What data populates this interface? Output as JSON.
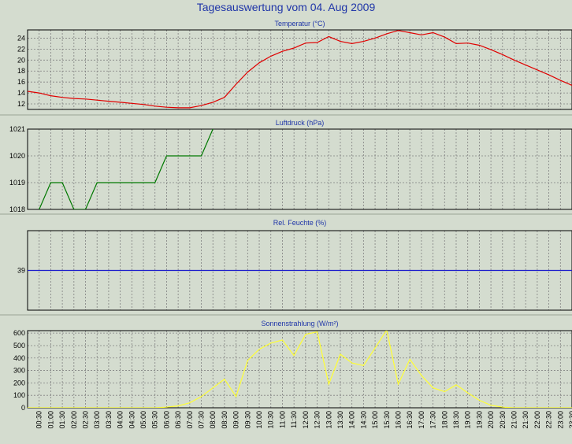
{
  "page": {
    "title": "Tagesauswertung vom 04. Aug 2009",
    "bg_color": "#d4dccf",
    "plot_bg": "#d4dccf",
    "grid_color": "#808080",
    "title_color": "#1f35a8"
  },
  "x_ticks": [
    "00:30",
    "01:00",
    "01:30",
    "02:00",
    "02:30",
    "03:00",
    "03:30",
    "04:00",
    "04:30",
    "05:00",
    "05:30",
    "06:00",
    "06:30",
    "07:00",
    "07:30",
    "08:00",
    "08:30",
    "09:00",
    "09:30",
    "10:00",
    "10:30",
    "11:00",
    "11:30",
    "12:00",
    "12:30",
    "13:00",
    "13:30",
    "14:00",
    "14:30",
    "15:00",
    "15:30",
    "16:00",
    "16:30",
    "17:00",
    "17:30",
    "18:00",
    "18:30",
    "19:00",
    "19:30",
    "20:00",
    "20:30",
    "21:00",
    "21:30",
    "22:00",
    "22:30",
    "23:00",
    "23:30"
  ],
  "chart_data": [
    {
      "type": "line",
      "title": "Temperatur (°C)",
      "color": "#e00000",
      "ylim": [
        11,
        25.5
      ],
      "yticks": [
        12,
        14,
        16,
        18,
        20,
        22,
        24
      ],
      "x_hours": [
        0,
        0.5,
        1,
        1.5,
        2,
        2.5,
        3,
        3.5,
        4,
        4.5,
        5,
        5.5,
        6,
        6.5,
        7,
        7.5,
        8,
        8.5,
        9,
        9.5,
        10,
        10.5,
        11,
        11.5,
        12,
        12.5,
        13,
        13.5,
        14,
        14.5,
        15,
        15.5,
        16,
        16.5,
        17,
        17.5,
        18,
        18.5,
        19,
        19.5,
        20,
        20.5,
        21,
        21.5,
        22,
        22.5,
        23,
        23.5
      ],
      "values": [
        14.3,
        14,
        13.5,
        13.2,
        13,
        12.9,
        12.7,
        12.5,
        12.3,
        12.1,
        11.9,
        11.6,
        11.4,
        11.3,
        11.3,
        11.7,
        12.3,
        13.2,
        15.6,
        17.8,
        19.5,
        20.7,
        21.6,
        22.2,
        23.1,
        23.2,
        24.3,
        23.4,
        23,
        23.4,
        24,
        24.8,
        25.4,
        25,
        24.6,
        25,
        24.2,
        23,
        23.1,
        22.7,
        21.9,
        21,
        20,
        19.1,
        18.2,
        17.3,
        16.3,
        15.4
      ]
    },
    {
      "type": "line",
      "title": "Luftdruck (hPa)",
      "color": "#007800",
      "ylim": [
        1018,
        1021
      ],
      "yticks": [
        1018,
        1019,
        1020,
        1021
      ],
      "x_hours": [
        0,
        0.5,
        1,
        1.5,
        2,
        2.5,
        3,
        3.5,
        4,
        4.5,
        5,
        5.5,
        6,
        6.5,
        7,
        7.5,
        8,
        8.5
      ],
      "values": [
        1017.5,
        1018,
        1019,
        1019,
        1018,
        1018,
        1019,
        1019,
        1019,
        1019,
        1019,
        1019,
        1020,
        1020,
        1020,
        1020,
        1021,
        1021.5
      ]
    },
    {
      "type": "line",
      "title": "Rel. Feuchte (%)",
      "color": "#1a1acc",
      "ylim": [
        36,
        42
      ],
      "yticks": [
        39
      ],
      "x_hours": [
        0,
        23.5
      ],
      "values": [
        39,
        39
      ]
    },
    {
      "type": "line",
      "title": "Sonnenstrahlung (W/m²)",
      "color": "#ffff33",
      "ylim": [
        0,
        620
      ],
      "yticks": [
        0,
        100,
        200,
        300,
        400,
        500,
        600
      ],
      "x_hours": [
        0,
        0.5,
        1,
        1.5,
        2,
        2.5,
        3,
        3.5,
        4,
        4.5,
        5,
        5.5,
        6,
        6.5,
        7,
        7.5,
        8,
        8.5,
        9,
        9.5,
        10,
        10.5,
        11,
        11.5,
        12,
        12.5,
        13,
        13.5,
        14,
        14.5,
        15,
        15.5,
        16,
        16.5,
        17,
        17.5,
        18,
        18.5,
        19,
        19.5,
        20,
        20.5,
        21,
        21.5,
        22,
        22.5,
        23,
        23.5
      ],
      "values": [
        0,
        0,
        0,
        0,
        0,
        0,
        0,
        0,
        0,
        0,
        0,
        0,
        5,
        15,
        40,
        90,
        160,
        230,
        90,
        380,
        470,
        520,
        545,
        420,
        590,
        610,
        190,
        430,
        360,
        340,
        480,
        625,
        190,
        390,
        260,
        160,
        130,
        185,
        120,
        60,
        20,
        5,
        0,
        0,
        0,
        0,
        0,
        0
      ]
    }
  ]
}
